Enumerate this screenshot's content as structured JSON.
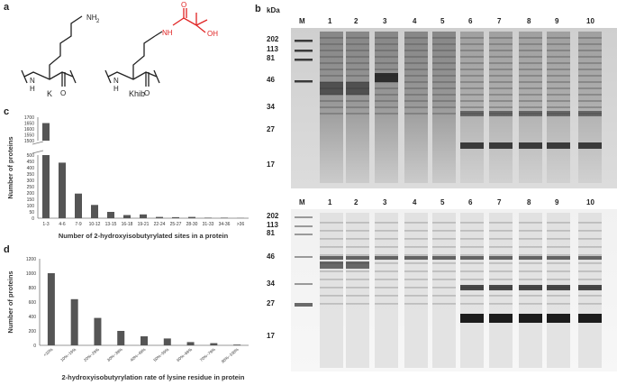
{
  "panels": {
    "a": {
      "letter": "a",
      "structures": [
        {
          "label": "K",
          "amine": "NH",
          "amine_sub": "2",
          "backbone_nh": "H",
          "backbone_n": "N",
          "carbonyl_o": "O"
        },
        {
          "label": "Khib",
          "amide_nh": "NH",
          "carbonyl_o": "O",
          "hydroxyl": "OH",
          "backbone_nh": "H",
          "backbone_n": "N",
          "backbone_o": "O"
        }
      ],
      "colors": {
        "modification": "#e02424",
        "bond": "#222222"
      }
    },
    "b": {
      "letter": "b",
      "kda_label": "kDa",
      "lane_labels": [
        "M",
        "1",
        "2",
        "3",
        "4",
        "5",
        "6",
        "7",
        "8",
        "9",
        "10"
      ],
      "top_gel_markers": [
        "202",
        "113",
        "81",
        "46",
        "34",
        "27",
        "17"
      ],
      "bottom_gel_markers": [
        "202",
        "113",
        "81",
        "46",
        "34",
        "27",
        "17"
      ]
    },
    "c": {
      "letter": "c"
    },
    "d": {
      "letter": "d"
    }
  },
  "chart_data": [
    {
      "type": "bar",
      "panel": "c",
      "title": "",
      "xlabel": "Number of 2-hydroxyisobutyrylated sites in a protein",
      "ylabel": "Number of proteins",
      "categories": [
        "1-3",
        "4-6",
        "7-9",
        "10-12",
        "13-15",
        "16-18",
        "19-21",
        "22-24",
        "25-27",
        "28-30",
        "31-33",
        "34-36",
        ">36"
      ],
      "values": [
        1650,
        440,
        195,
        105,
        50,
        25,
        30,
        10,
        8,
        10,
        4,
        4,
        2
      ],
      "axis_break": {
        "lower_range": [
          0,
          500
        ],
        "upper_range": [
          1500,
          1700
        ]
      },
      "lower_ticks": [
        "0",
        "50",
        "100",
        "150",
        "200",
        "250",
        "300",
        "350",
        "400",
        "450",
        "500"
      ],
      "upper_ticks": [
        "1500",
        "1550",
        "1600",
        "1650",
        "1700"
      ],
      "bar_color": "#555555",
      "grid": false
    },
    {
      "type": "bar",
      "panel": "d",
      "title": "",
      "xlabel": "2-hydroxyisobutyrylation rate of lysine residue in protein",
      "ylabel": "Number of proteins",
      "categories": [
        "<10%",
        "10%~19%",
        "20%~29%",
        "30%~39%",
        "40%~49%",
        "50%~59%",
        "60%~69%",
        "70%~79%",
        "80%~100%"
      ],
      "values": [
        1000,
        640,
        380,
        200,
        125,
        95,
        45,
        30,
        10
      ],
      "ylim": [
        0,
        1200
      ],
      "yticks": [
        "0",
        "200",
        "400",
        "600",
        "800",
        "1000",
        "1200"
      ],
      "bar_color": "#555555",
      "grid": false
    }
  ]
}
